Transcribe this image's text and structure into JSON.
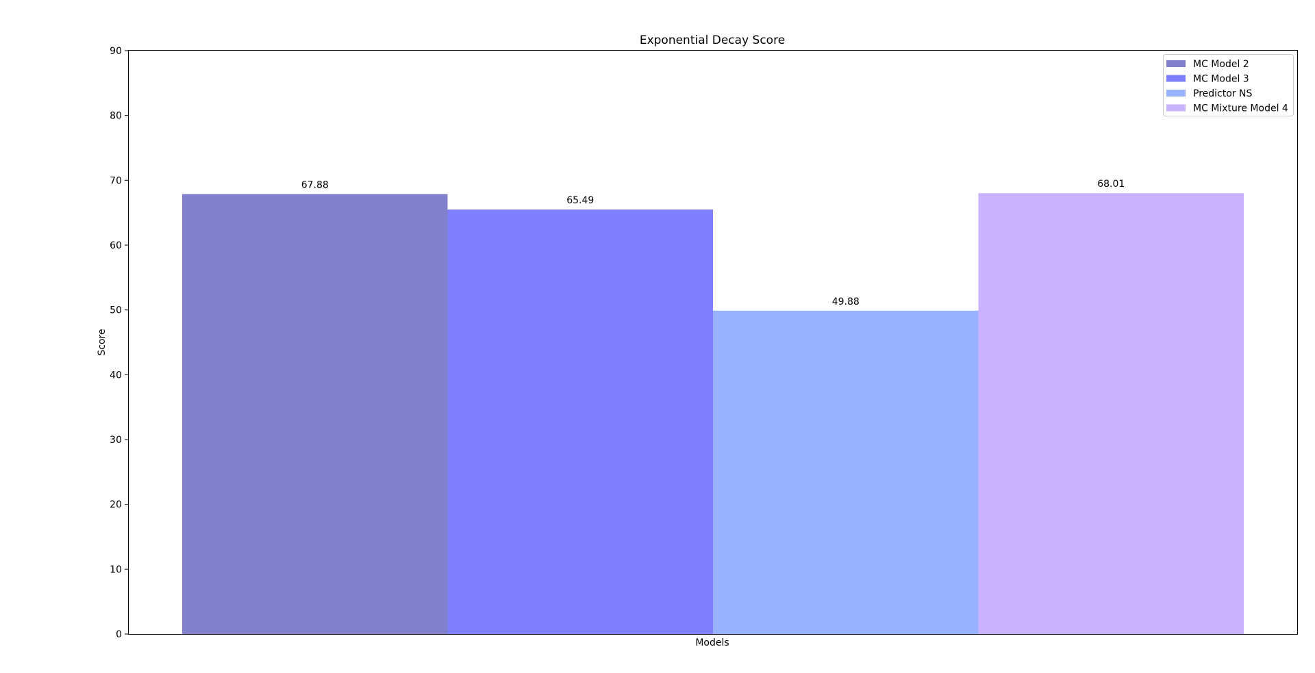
{
  "chart_data": {
    "type": "bar",
    "title": "Exponential Decay Score",
    "xlabel": "Models",
    "ylabel": "Score",
    "ylim": [
      0,
      90
    ],
    "yticks": [
      0,
      10,
      20,
      30,
      40,
      50,
      60,
      70,
      80,
      90
    ],
    "grid": false,
    "legend_position": "top-right",
    "series": [
      {
        "name": "MC Model 2",
        "value": 67.88,
        "label": "67.88",
        "color": "#8080cc"
      },
      {
        "name": "MC Model 3",
        "value": 65.49,
        "label": "65.49",
        "color": "#8080ff"
      },
      {
        "name": "Predictor NS",
        "value": 49.88,
        "label": "49.88",
        "color": "#99b2ff"
      },
      {
        "name": "MC Mixture Model 4",
        "value": 68.01,
        "label": "68.01",
        "color": "#c9b3ff"
      }
    ]
  }
}
